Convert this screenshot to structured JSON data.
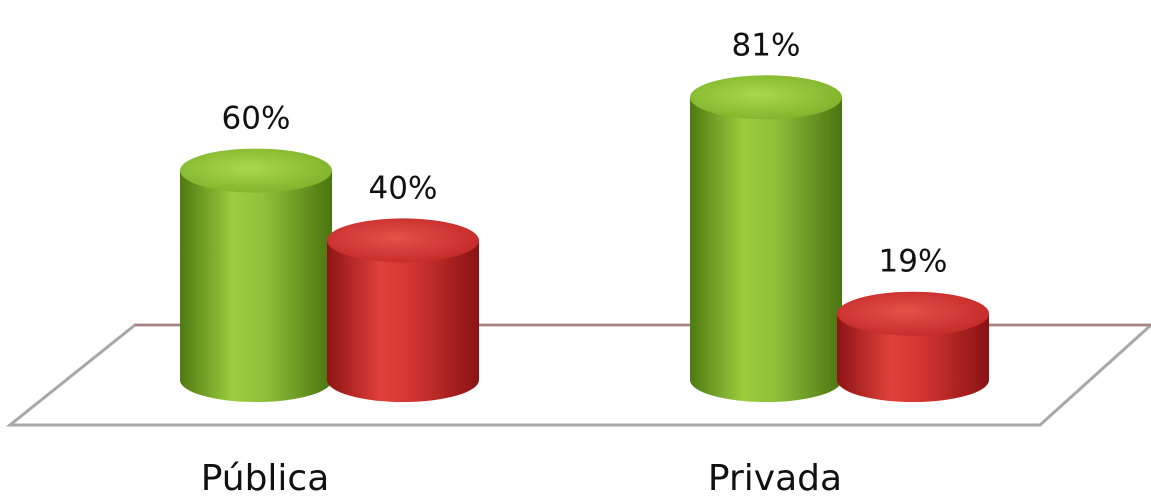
{
  "chart_data": {
    "type": "bar",
    "style": "3d-cylinder",
    "categories": [
      "Pública",
      "Privada"
    ],
    "series": [
      {
        "values": [
          60,
          81
        ],
        "color": "#7fb32a"
      },
      {
        "values": [
          40,
          19
        ],
        "color": "#c9282a"
      }
    ],
    "data_labels": [
      [
        "60%",
        "81%"
      ],
      [
        "40%",
        "19%"
      ]
    ],
    "ylim": [
      0,
      100
    ],
    "grid": false,
    "legend": "none"
  }
}
